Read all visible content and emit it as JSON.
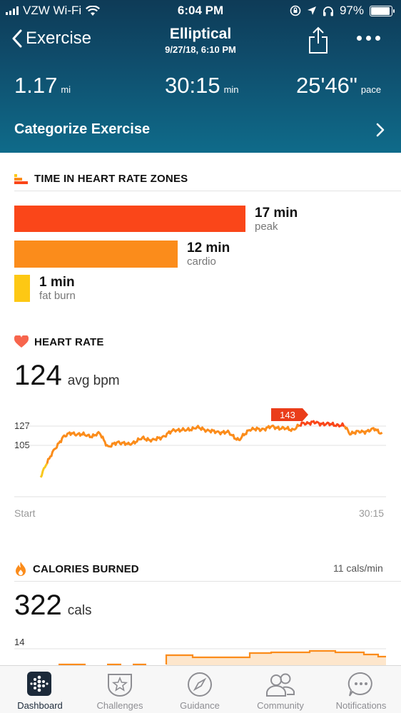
{
  "status_bar": {
    "carrier": "VZW Wi-Fi",
    "time": "6:04 PM",
    "battery": "97%"
  },
  "nav": {
    "back_label": "Exercise",
    "title": "Elliptical",
    "subtitle": "9/27/18, 6:10 PM"
  },
  "summary": {
    "distance": {
      "value": "1.17",
      "unit": "mi"
    },
    "duration": {
      "value": "30:15",
      "unit": "min"
    },
    "pace": {
      "value": "25'46\"",
      "unit": "pace"
    },
    "categorize_label": "Categorize Exercise"
  },
  "zones": {
    "title": "TIME IN HEART RATE ZONES",
    "items": [
      {
        "value": "17 min",
        "label": "peak",
        "minutes": 17,
        "color": "#fa4619"
      },
      {
        "value": "12 min",
        "label": "cardio",
        "minutes": 12,
        "color": "#fb8c1b"
      },
      {
        "value": "1 min",
        "label": "fat burn",
        "minutes": 1,
        "color": "#fdc814"
      }
    ]
  },
  "heart_rate": {
    "title": "HEART RATE",
    "avg_value": "124",
    "avg_unit": "avg bpm",
    "y_ticks": [
      "127",
      "105"
    ],
    "peak_label": "143",
    "x_start": "Start",
    "x_end": "30:15",
    "colors": {
      "fat_burn": "#f9c81e",
      "cardio": "#fb8c1b",
      "peak": "#fa4619"
    }
  },
  "calories": {
    "title": "CALORIES BURNED",
    "rate": "11 cals/min",
    "value": "322",
    "unit": "cals",
    "y_tick": "14",
    "color": "#fb8c1b"
  },
  "tabs": [
    {
      "label": "Dashboard",
      "icon": "dashboard-icon",
      "active": true
    },
    {
      "label": "Challenges",
      "icon": "challenges-icon",
      "active": false
    },
    {
      "label": "Guidance",
      "icon": "guidance-icon",
      "active": false
    },
    {
      "label": "Community",
      "icon": "community-icon",
      "active": false
    },
    {
      "label": "Notifications",
      "icon": "notifications-icon",
      "active": false
    }
  ]
}
